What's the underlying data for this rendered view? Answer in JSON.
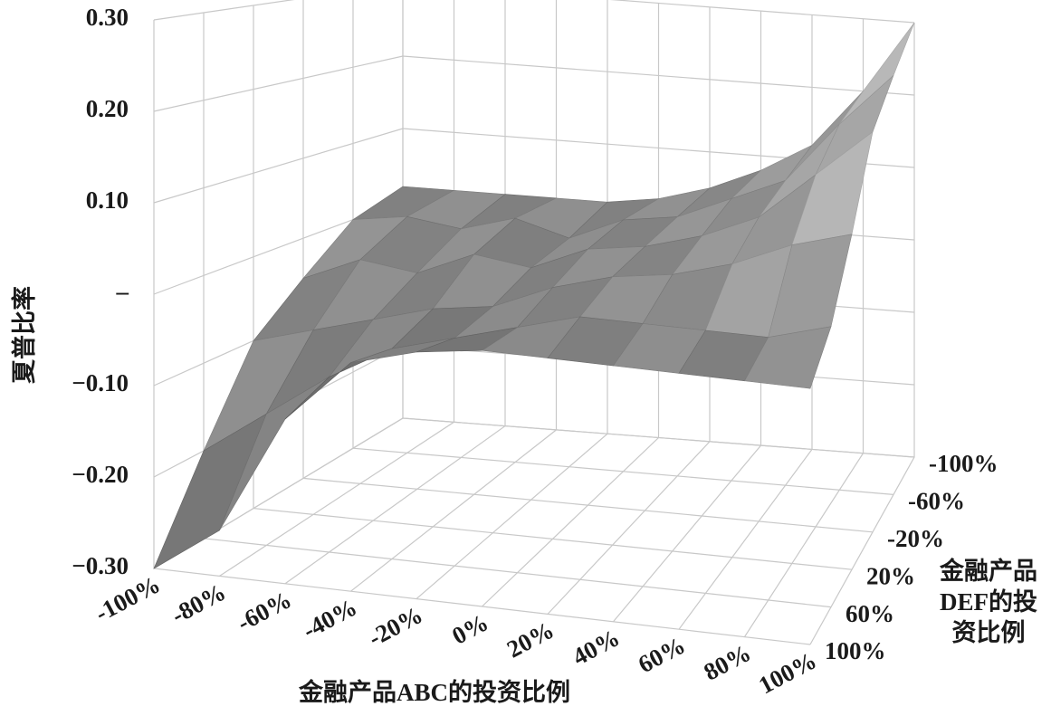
{
  "chart_data": {
    "type": "surface",
    "z_axis_label": "夏普比率",
    "x_axis_label": "金融产品ABC的投资比例",
    "y_axis_label_lines": [
      "金融产品",
      "DEF的投",
      "资比例"
    ],
    "x": [
      "-100%",
      "-80%",
      "-60%",
      "-40%",
      "-20%",
      "0%",
      "20%",
      "40%",
      "60%",
      "80%",
      "100%"
    ],
    "y": [
      "-100%",
      "-60%",
      "-20%",
      "20%",
      "60%",
      "100%"
    ],
    "z": [
      [
        0.02,
        0.02,
        0.02,
        0.02,
        0.02,
        0.03,
        0.05,
        0.08,
        0.12,
        0.2,
        0.3
      ],
      [
        0.0,
        0.01,
        0.0,
        0.02,
        0.0,
        0.03,
        0.04,
        0.07,
        0.1,
        0.18,
        0.25
      ],
      [
        -0.05,
        -0.02,
        -0.03,
        0.0,
        -0.01,
        0.02,
        0.03,
        0.05,
        0.08,
        0.14,
        0.2
      ],
      [
        -0.1,
        -0.08,
        -0.06,
        -0.04,
        -0.03,
        0.0,
        0.02,
        0.03,
        0.05,
        0.08,
        0.1
      ],
      [
        -0.2,
        -0.15,
        -0.1,
        -0.06,
        -0.04,
        -0.02,
        0.0,
        0.0,
        0.0,
        0.0,
        0.02
      ],
      [
        -0.3,
        -0.25,
        -0.12,
        -0.05,
        -0.03,
        -0.02,
        -0.02,
        -0.02,
        -0.02,
        -0.02,
        -0.02
      ]
    ],
    "zlim": [
      -0.3,
      0.3
    ],
    "zticks": [
      {
        "value": -0.3,
        "label": "−0.30"
      },
      {
        "value": -0.2,
        "label": "−0.20"
      },
      {
        "value": -0.1,
        "label": "−0.10"
      },
      {
        "value": 0,
        "label": "–"
      },
      {
        "value": 0.1,
        "label": "0.10"
      },
      {
        "value": 0.2,
        "label": "0.20"
      },
      {
        "value": 0.3,
        "label": "0.30"
      }
    ],
    "grid": true
  }
}
